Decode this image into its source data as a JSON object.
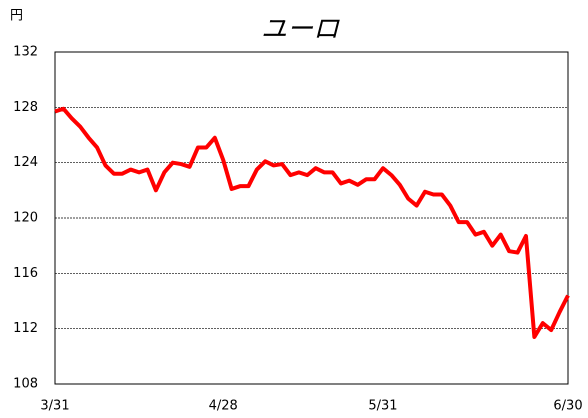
{
  "chart_data": {
    "type": "line",
    "title": "ユーロ",
    "y_label": "円",
    "categories": [
      "3/31",
      null,
      null,
      null,
      null,
      null,
      null,
      null,
      null,
      null,
      null,
      null,
      null,
      null,
      null,
      null,
      null,
      null,
      null,
      null,
      "4/28",
      null,
      null,
      null,
      null,
      null,
      null,
      null,
      null,
      null,
      null,
      null,
      null,
      null,
      null,
      null,
      null,
      null,
      null,
      "5/31",
      null,
      null,
      null,
      null,
      null,
      null,
      null,
      null,
      null,
      null,
      null,
      null,
      null,
      null,
      null,
      null,
      null,
      null,
      null,
      null,
      null,
      "6/30"
    ],
    "values": [
      127.7,
      127.9,
      127.2,
      126.6,
      125.8,
      125.1,
      123.8,
      123.2,
      123.2,
      123.5,
      123.3,
      123.5,
      122.0,
      123.3,
      124.0,
      123.9,
      123.7,
      125.1,
      125.1,
      125.8,
      124.2,
      122.1,
      122.3,
      122.3,
      123.5,
      124.1,
      123.8,
      123.9,
      123.1,
      123.3,
      123.1,
      123.6,
      123.3,
      123.3,
      122.5,
      122.7,
      122.4,
      122.8,
      122.8,
      123.6,
      123.1,
      122.4,
      121.4,
      120.9,
      121.9,
      121.7,
      121.7,
      120.9,
      119.7,
      119.7,
      118.8,
      119.0,
      118.0,
      118.8,
      117.6,
      117.5,
      118.7,
      111.4,
      112.4,
      111.9,
      113.2,
      114.4
    ],
    "color": "#ff0000",
    "ylim": [
      108,
      132
    ],
    "yticks": [
      108,
      112,
      116,
      120,
      124,
      128,
      132
    ],
    "grid": true
  }
}
